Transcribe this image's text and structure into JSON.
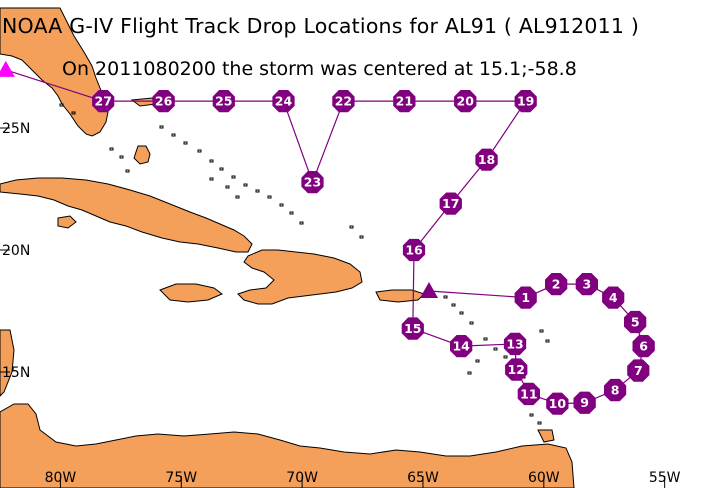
{
  "title": "NOAA G-IV Flight Track Drop Locations for AL91 ( AL912011 )",
  "subtitle": "On 2011080200 the storm was centered at 15.1;-58.8",
  "axes": {
    "x_ticks": [
      {
        "lon": -80,
        "label": "80W"
      },
      {
        "lon": -75,
        "label": "75W"
      },
      {
        "lon": -70,
        "label": "70W"
      },
      {
        "lon": -65,
        "label": "65W"
      },
      {
        "lon": -60,
        "label": "60W"
      },
      {
        "lon": -55,
        "label": "55W"
      }
    ],
    "y_ticks": [
      {
        "lat": 25,
        "label": "25N"
      },
      {
        "lat": 20,
        "label": "20N"
      },
      {
        "lat": 15,
        "label": "15N"
      }
    ]
  },
  "colors": {
    "land": "#f5a05a",
    "ocean": "#ffffff",
    "coastline": "#000000",
    "track": "#800080",
    "drop_marker": "#800080",
    "drop_label": "#ffffff",
    "storm_center": "#800080",
    "start_marker": "#ff00ff"
  },
  "storm_center": {
    "lat": 15.1,
    "lon": -58.8
  },
  "drops": [
    {
      "id": "1",
      "lon": -60.75,
      "lat": 18.05
    },
    {
      "id": "2",
      "lon": -59.49,
      "lat": 18.6
    },
    {
      "id": "3",
      "lon": -58.22,
      "lat": 18.6
    },
    {
      "id": "4",
      "lon": -57.13,
      "lat": 18.05
    },
    {
      "id": "5",
      "lon": -56.22,
      "lat": 17.05
    },
    {
      "id": "6",
      "lon": -55.87,
      "lat": 16.06
    },
    {
      "id": "7",
      "lon": -56.09,
      "lat": 15.06
    },
    {
      "id": "8",
      "lon": -57.05,
      "lat": 14.26
    },
    {
      "id": "9",
      "lon": -58.31,
      "lat": 13.74
    },
    {
      "id": "10",
      "lon": -59.44,
      "lat": 13.7
    },
    {
      "id": "11",
      "lon": -60.62,
      "lat": 14.1
    },
    {
      "id": "12",
      "lon": -61.14,
      "lat": 15.1
    },
    {
      "id": "13",
      "lon": -61.19,
      "lat": 16.15
    },
    {
      "id": "14",
      "lon": -63.42,
      "lat": 16.06
    },
    {
      "id": "15",
      "lon": -65.42,
      "lat": 16.78
    },
    {
      "id": "16",
      "lon": -65.37,
      "lat": 20.0
    },
    {
      "id": "17",
      "lon": -63.85,
      "lat": 21.9
    },
    {
      "id": "18",
      "lon": -62.37,
      "lat": 23.7
    },
    {
      "id": "19",
      "lon": -60.75,
      "lat": 26.1
    },
    {
      "id": "20",
      "lon": -63.25,
      "lat": 26.1
    },
    {
      "id": "21",
      "lon": -65.77,
      "lat": 26.1
    },
    {
      "id": "22",
      "lon": -68.29,
      "lat": 26.1
    },
    {
      "id": "23",
      "lon": -69.57,
      "lat": 22.78
    },
    {
      "id": "24",
      "lon": -70.77,
      "lat": 26.1
    },
    {
      "id": "25",
      "lon": -73.24,
      "lat": 26.1
    },
    {
      "id": "26",
      "lon": -75.73,
      "lat": 26.1
    },
    {
      "id": "27",
      "lon": -78.23,
      "lat": 26.1
    }
  ],
  "start_marker": {
    "lon": -82.26,
    "lat": 27.38
  },
  "storm_marker": {
    "lon": -64.75,
    "lat": 18.32
  }
}
